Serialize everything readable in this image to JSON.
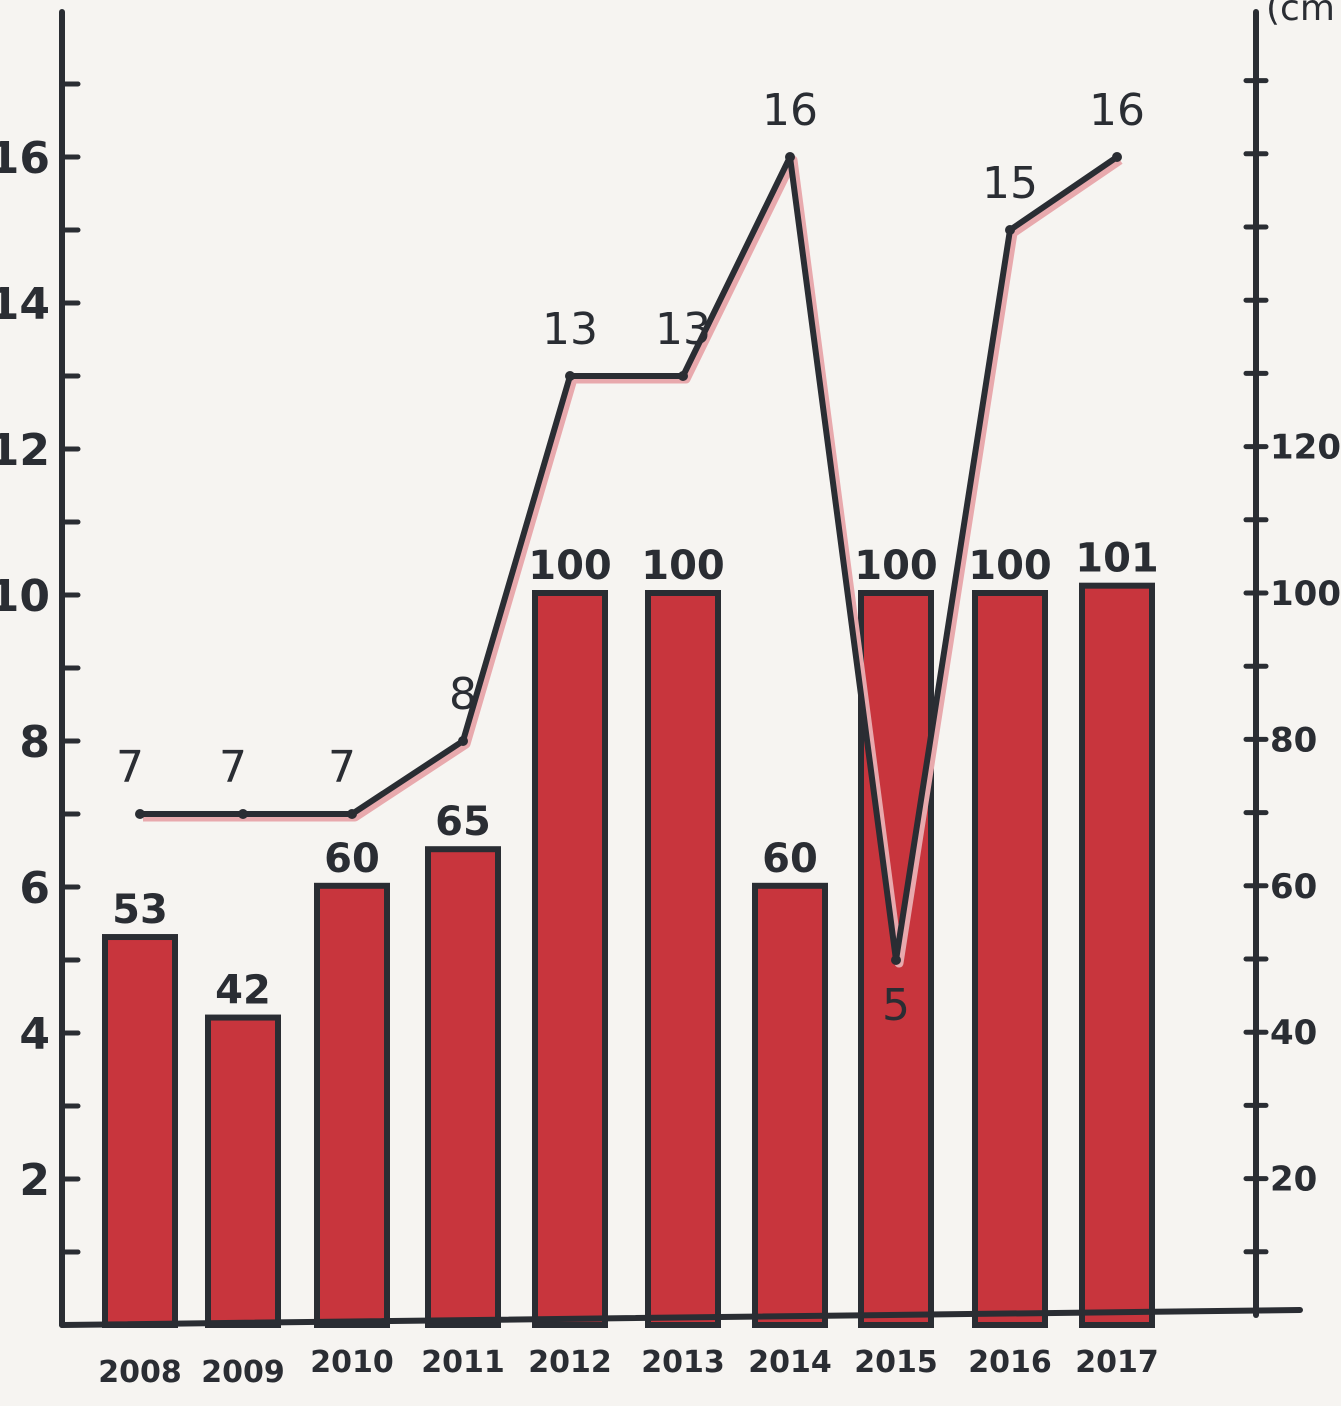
{
  "chart_data": {
    "type": "bar",
    "categories": [
      "2008",
      "2009",
      "2010",
      "2011",
      "2012",
      "2013",
      "2014",
      "2015",
      "2016",
      "2017"
    ],
    "series": [
      {
        "type": "bar",
        "axis": "right",
        "values": [
          53,
          42,
          60,
          65,
          100,
          100,
          60,
          100,
          100,
          101
        ]
      },
      {
        "type": "line",
        "axis": "left",
        "values": [
          7,
          7,
          7,
          8,
          13,
          13,
          16,
          5,
          15,
          16
        ]
      }
    ],
    "bar_labels": [
      "53",
      "42",
      "60",
      "65",
      "100",
      "100",
      "60",
      "100",
      "100",
      "101"
    ],
    "line_labels": [
      "7",
      "7",
      "7",
      "8",
      "13",
      "13",
      "16",
      "5",
      "15",
      "16"
    ],
    "left_axis": {
      "ylim": [
        0,
        18
      ],
      "ticks": [
        2,
        4,
        6,
        8,
        10,
        12,
        14,
        16
      ],
      "tick_labels": [
        "2",
        "4",
        "6",
        "8",
        "10",
        "12",
        "14",
        "16"
      ]
    },
    "right_axis": {
      "ylim": [
        0,
        180
      ],
      "ticks": [
        20,
        40,
        60,
        80,
        100,
        120
      ],
      "tick_labels": [
        "20",
        "40",
        "60",
        "80",
        "100",
        "120"
      ],
      "unit_label": "(cm"
    },
    "bar_color": "#c8353d",
    "line_color": "#2a2d33",
    "background": "#f6f4f1",
    "grid": false
  }
}
